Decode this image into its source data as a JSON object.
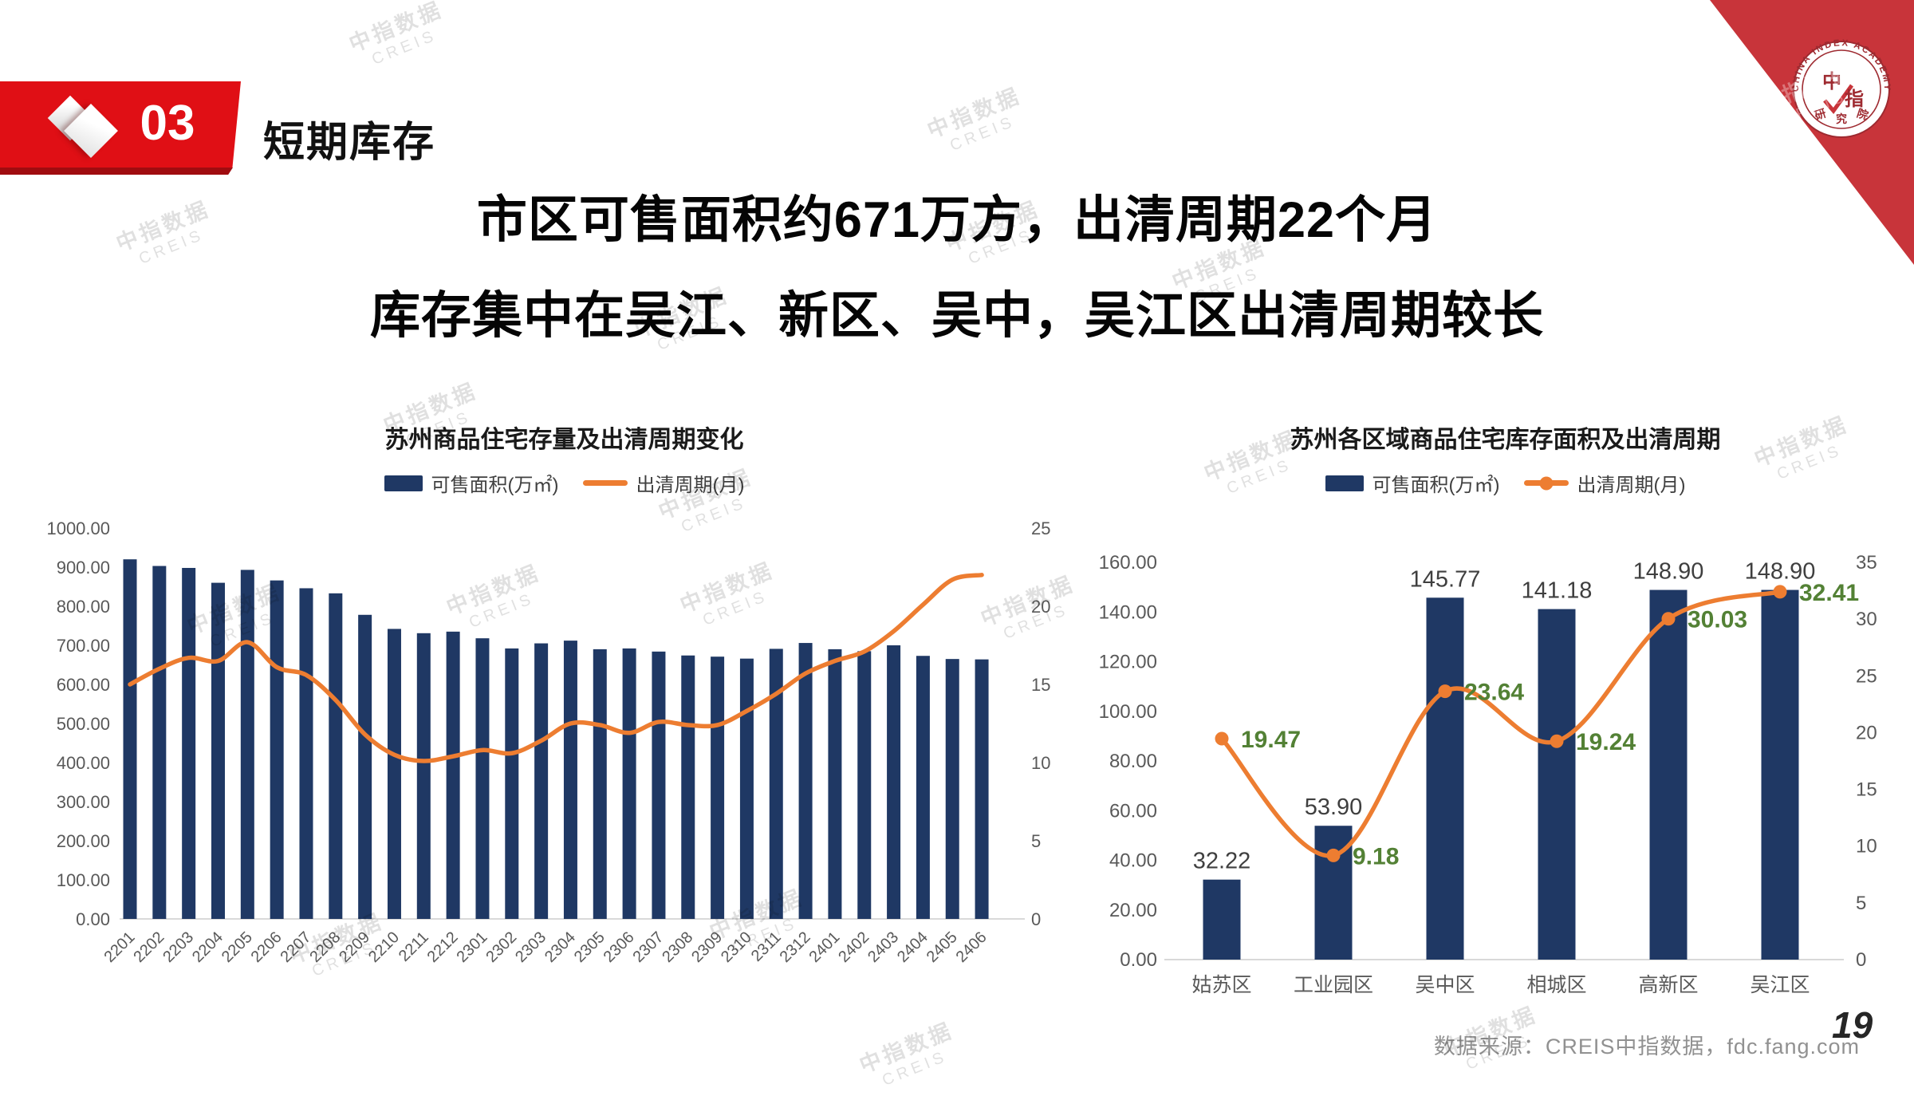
{
  "slide": {
    "header": {
      "number": "03",
      "title": "短期库存"
    },
    "headline": [
      "市区可售面积约671万方，出清周期22个月",
      "库存集中在吴江、新区、吴中，吴江区出清周期较长"
    ],
    "footer": {
      "source": "数据来源：CREIS中指数据，fdc.fang.com",
      "page": "19"
    },
    "logo": {
      "arc_text": "CHINA INDEX ACADEMY",
      "center_text": "中指",
      "bottom_text": "研究院"
    },
    "watermark": {
      "line1": "中指数据",
      "line2": "CREIS"
    }
  },
  "colors": {
    "bar": "#1F3864",
    "line": "#ED7D31",
    "green_label": "#538135",
    "axis_text": "#595959",
    "data_label": "#3F3F3F",
    "baseline": "#D9D9D9",
    "banner_red": "#E00F15",
    "triangle_red": "#C8343A",
    "seal_red": "#9E2A30"
  },
  "chart_data": [
    {
      "type": "bar+line",
      "title": "苏州商品住宅存量及出清周期变化",
      "legend": [
        {
          "label": "可售面积(万㎡)",
          "swatch": "bar"
        },
        {
          "label": "出清周期(月)",
          "swatch": "line"
        }
      ],
      "legend_position": "top",
      "grid": false,
      "categories": [
        "2201",
        "2202",
        "2203",
        "2204",
        "2205",
        "2206",
        "2207",
        "2208",
        "2209",
        "2210",
        "2211",
        "2212",
        "2301",
        "2302",
        "2303",
        "2304",
        "2305",
        "2306",
        "2307",
        "2308",
        "2309",
        "2310",
        "2311",
        "2312",
        "2401",
        "2402",
        "2403",
        "2404",
        "2405",
        "2406"
      ],
      "series": [
        {
          "name": "可售面积(万㎡)",
          "type": "bar",
          "axis": "left",
          "values": [
            920,
            903,
            898,
            860,
            893,
            866,
            846,
            833,
            778,
            742,
            731,
            735,
            718,
            692,
            705,
            712,
            690,
            692,
            684,
            674,
            671,
            666,
            691,
            706,
            690,
            685,
            700,
            673,
            665,
            664
          ]
        },
        {
          "name": "出清周期(月)",
          "type": "line",
          "axis": "right",
          "marker": false,
          "values": [
            15.0,
            16.0,
            16.7,
            16.5,
            17.7,
            16.1,
            15.6,
            14.0,
            11.8,
            10.5,
            10.1,
            10.4,
            10.8,
            10.6,
            11.4,
            12.5,
            12.4,
            11.9,
            12.6,
            12.4,
            12.4,
            13.3,
            14.4,
            15.7,
            16.5,
            17.1,
            18.4,
            20.1,
            21.7,
            22.0
          ]
        }
      ],
      "left_axis": {
        "min": 0,
        "max": 1000,
        "step": 100,
        "decimals": 2
      },
      "right_axis": {
        "min": 0,
        "max": 25,
        "step": 5,
        "decimals": 0
      }
    },
    {
      "type": "bar+line",
      "title": "苏州各区域商品住宅库存面积及出清周期",
      "legend": [
        {
          "label": "可售面积(万㎡)",
          "swatch": "bar"
        },
        {
          "label": "出清周期(月)",
          "swatch": "line-marker"
        }
      ],
      "legend_position": "top",
      "grid": false,
      "categories": [
        "姑苏区",
        "工业园区",
        "吴中区",
        "相城区",
        "高新区",
        "吴江区"
      ],
      "series": [
        {
          "name": "可售面积(万㎡)",
          "type": "bar",
          "axis": "left",
          "values": [
            32.22,
            53.9,
            145.77,
            141.18,
            148.9,
            148.9
          ],
          "labels": [
            "32.22",
            "53.90",
            "145.77",
            "141.18",
            "148.90",
            "148.90"
          ]
        },
        {
          "name": "出清周期(月)",
          "type": "line",
          "axis": "right",
          "marker": true,
          "values": [
            19.47,
            9.18,
            23.64,
            19.24,
            30.03,
            32.41
          ],
          "labels": [
            "19.47",
            "9.18",
            "23.64",
            "19.24",
            "30.03",
            "32.41"
          ]
        }
      ],
      "left_axis": {
        "min": 0,
        "max": 160,
        "step": 20,
        "decimals": 2
      },
      "right_axis": {
        "min": 0,
        "max": 35,
        "step": 5,
        "decimals": 0
      }
    }
  ]
}
